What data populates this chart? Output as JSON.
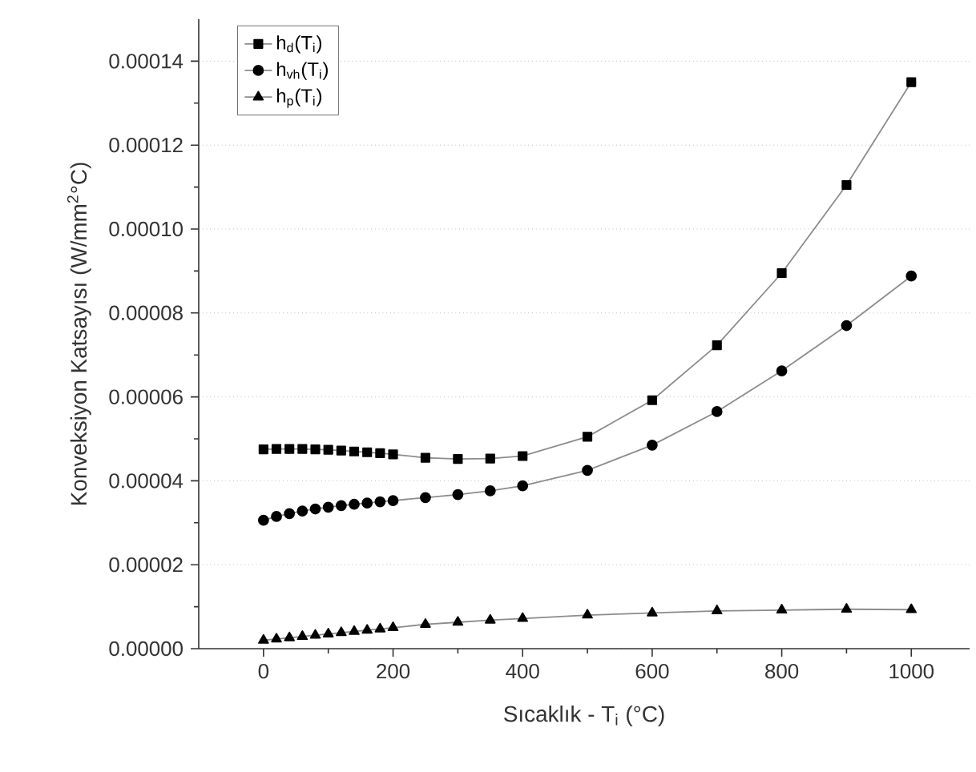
{
  "chart_data": {
    "type": "line",
    "xlabel": "Sıcaklık  - T$_{i}$ (°C)",
    "ylabel": "Konveksiyon Katsayısı   (W/mm$^{2}$°C)",
    "xlim": [
      -100,
      1090
    ],
    "ylim": [
      0,
      0.00015
    ],
    "xticks": [
      0,
      200,
      400,
      600,
      800,
      1000
    ],
    "yticks": [
      {
        "value": 0,
        "label": "0.00000"
      },
      {
        "value": 2e-05,
        "label": "0.00002"
      },
      {
        "value": 4e-05,
        "label": "0.00004"
      },
      {
        "value": 6e-05,
        "label": "0.00006"
      },
      {
        "value": 8e-05,
        "label": "0.00008"
      },
      {
        "value": 0.0001,
        "label": "0.00010"
      },
      {
        "value": 0.00012,
        "label": "0.00012"
      },
      {
        "value": 0.00014,
        "label": "0.00014"
      }
    ],
    "grid": "y",
    "legend": "top left",
    "line_style": "solid",
    "x": [
      0,
      20,
      40,
      60,
      80,
      100,
      120,
      140,
      160,
      180,
      200,
      250,
      300,
      350,
      400,
      500,
      600,
      700,
      800,
      900,
      1000
    ],
    "series": [
      {
        "name": "h$_{d}$(T$_{i}$)",
        "color": "#000000",
        "marker": "square",
        "values": [
          4.75e-05,
          4.76e-05,
          4.76e-05,
          4.76e-05,
          4.75e-05,
          4.74e-05,
          4.72e-05,
          4.7e-05,
          4.68e-05,
          4.66e-05,
          4.63e-05,
          4.55e-05,
          4.52e-05,
          4.53e-05,
          4.59e-05,
          5.05e-05,
          5.92e-05,
          7.23e-05,
          8.95e-05,
          0.0001105,
          0.000135
        ]
      },
      {
        "name": "h$_{vh}$(T$_{i}$)",
        "color": "#000000",
        "marker": "circle",
        "values": [
          3.06e-05,
          3.15e-05,
          3.22e-05,
          3.28e-05,
          3.33e-05,
          3.37e-05,
          3.41e-05,
          3.44e-05,
          3.47e-05,
          3.5e-05,
          3.53e-05,
          3.6e-05,
          3.67e-05,
          3.76e-05,
          3.88e-05,
          4.25e-05,
          4.85e-05,
          5.65e-05,
          6.62e-05,
          7.7e-05,
          8.88e-05
        ]
      },
      {
        "name": "h$_{p}$(T$_{i}$)",
        "color": "#000000",
        "marker": "triangle",
        "values": [
          2e-06,
          2.3e-06,
          2.6e-06,
          2.9e-06,
          3.2e-06,
          3.5e-06,
          3.8e-06,
          4.1e-06,
          4.4e-06,
          4.7e-06,
          5e-06,
          5.8e-06,
          6.3e-06,
          6.8e-06,
          7.2e-06,
          8e-06,
          8.5e-06,
          9e-06,
          9.2e-06,
          9.4e-06,
          9.3e-06
        ]
      }
    ]
  }
}
